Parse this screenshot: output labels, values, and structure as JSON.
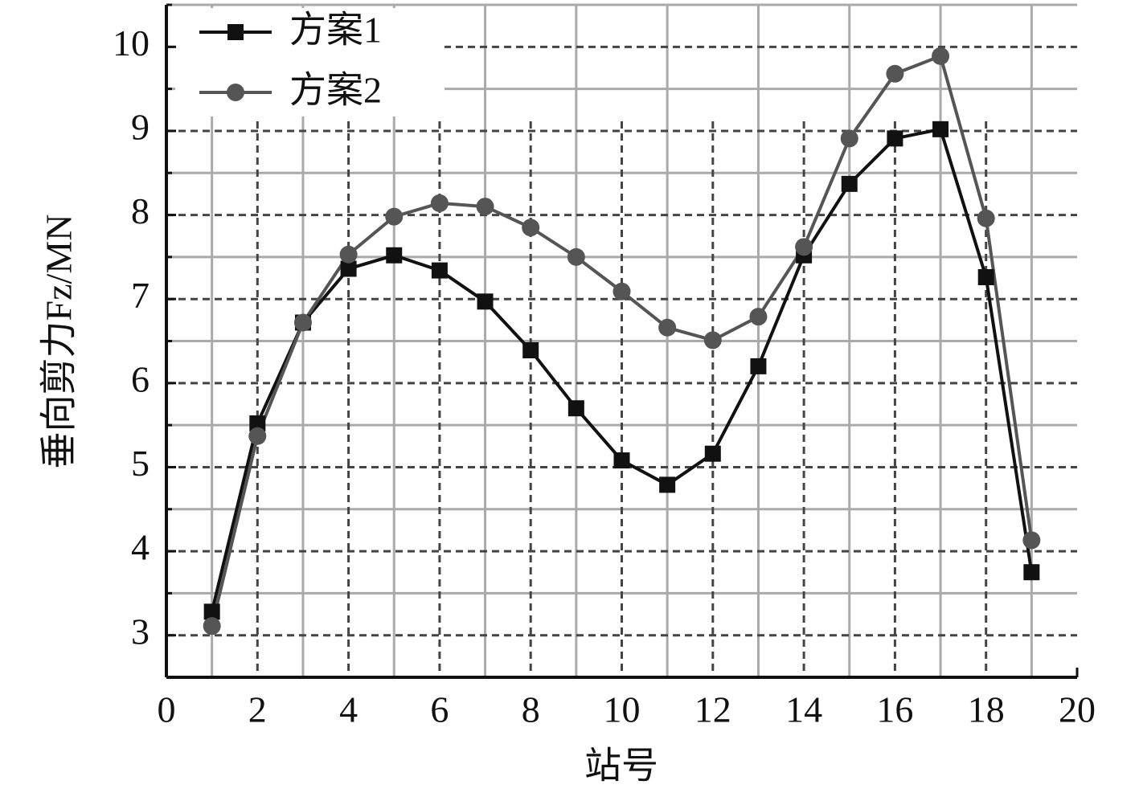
{
  "chart_data": {
    "type": "line",
    "xlabel": "站号",
    "ylabel": "垂向剪力Fz/MN",
    "xlim": [
      0,
      20
    ],
    "ylim": [
      2.5,
      10.5
    ],
    "xticks": [
      0,
      2,
      4,
      6,
      8,
      10,
      12,
      14,
      16,
      18,
      20
    ],
    "yticks": [
      3,
      4,
      5,
      6,
      7,
      8,
      9,
      10
    ],
    "xminorticks": [
      1,
      3,
      5,
      7,
      9,
      11,
      13,
      15,
      17,
      19
    ],
    "yminorticks": [
      3.5,
      4.5,
      5.5,
      6.5,
      7.5,
      8.5,
      9.5,
      10.5
    ],
    "grid": true,
    "legend": "upper left",
    "x": [
      1,
      2,
      3,
      4,
      5,
      6,
      7,
      8,
      9,
      10,
      11,
      12,
      13,
      14,
      15,
      16,
      17,
      18,
      19
    ],
    "series": [
      {
        "name": "方案1",
        "color": "#111111",
        "marker": "square",
        "values": [
          3.28,
          5.52,
          6.72,
          7.36,
          7.52,
          7.34,
          6.97,
          6.39,
          5.7,
          5.08,
          4.79,
          5.16,
          6.2,
          7.52,
          8.37,
          8.91,
          9.02,
          7.26,
          3.75
        ]
      },
      {
        "name": "方案2",
        "color": "#555555",
        "marker": "circle",
        "values": [
          3.11,
          5.37,
          6.72,
          7.53,
          7.98,
          8.14,
          8.1,
          7.85,
          7.5,
          7.09,
          6.66,
          6.51,
          6.79,
          7.62,
          8.91,
          9.68,
          9.89,
          7.96,
          4.13
        ]
      }
    ]
  }
}
